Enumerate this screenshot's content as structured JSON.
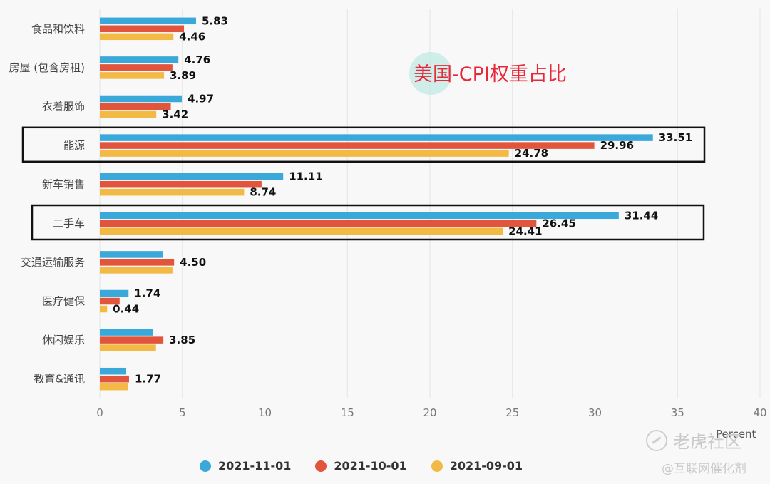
{
  "chart_data": {
    "type": "bar",
    "orientation": "horizontal",
    "title": "美国-CPI权重占比",
    "xlabel": "Percent",
    "xlim": [
      0,
      40
    ],
    "xticks": [
      0,
      5,
      10,
      15,
      20,
      25,
      30,
      35,
      40
    ],
    "grid": true,
    "legend_placement": "bottom",
    "categories": [
      "食品和饮料",
      "房屋 (包含房租)",
      "衣着服饰",
      "能源",
      "新车销售",
      "二手车",
      "交通运输服务",
      "医疗健保",
      "休闲娱乐",
      "教育&通讯"
    ],
    "series": [
      {
        "name": "2021-11-01",
        "color": "#3aa9d9",
        "values": [
          5.83,
          4.76,
          4.97,
          33.51,
          11.11,
          31.44,
          3.8,
          1.74,
          3.2,
          1.6
        ],
        "labels": [
          "5.83",
          "4.76",
          "4.97",
          "33.51",
          "11.11",
          "31.44",
          "",
          "1.74",
          "",
          ""
        ]
      },
      {
        "name": "2021-10-01",
        "color": "#e2553d",
        "values": [
          5.1,
          4.4,
          4.3,
          29.96,
          9.8,
          26.45,
          4.5,
          1.2,
          3.85,
          1.77
        ],
        "labels": [
          "",
          "",
          "",
          "29.96",
          "",
          "26.45",
          "4.50",
          "",
          "3.85",
          "1.77"
        ]
      },
      {
        "name": "2021-09-01",
        "color": "#f2b944",
        "values": [
          4.46,
          3.89,
          3.42,
          24.78,
          8.74,
          24.41,
          4.4,
          0.44,
          3.4,
          1.7
        ],
        "labels": [
          "4.46",
          "3.89",
          "3.42",
          "24.78",
          "8.74",
          "24.41",
          "",
          "0.44",
          "",
          ""
        ]
      }
    ],
    "highlighted_categories": [
      "能源",
      "二手车"
    ]
  },
  "watermark": {
    "brand": "老虎社区",
    "source": "@互联网催化剂"
  }
}
